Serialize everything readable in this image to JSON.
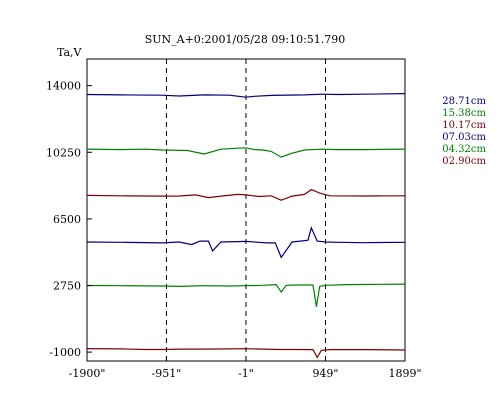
{
  "chart_data": {
    "type": "line",
    "title": "SUN_A+0:2001/05/28 09:10:51.790",
    "ylabel": "Ta,V",
    "xlabel": "",
    "x_ticks": [
      "-1900\"",
      "-951\"",
      "-1\"",
      "949\"",
      "1899\""
    ],
    "x_tick_values": [
      -1900,
      -951,
      -1,
      949,
      1899
    ],
    "y_ticks": [
      "14000",
      "10250",
      "6500",
      "2750",
      "-1000"
    ],
    "y_tick_values": [
      14000,
      10250,
      6500,
      2750,
      -1000
    ],
    "xlim": [
      -1900,
      1899
    ],
    "ylim": [
      -1500,
      15500
    ],
    "dashed_verticals": [
      -951,
      -1,
      949
    ],
    "grid": false,
    "legend_position": "right",
    "series": [
      {
        "name": "28.71cm",
        "color": "#00007f",
        "points": [
          [
            -1900,
            13500
          ],
          [
            -1500,
            13480
          ],
          [
            -1000,
            13460
          ],
          [
            -800,
            13420
          ],
          [
            -500,
            13480
          ],
          [
            -200,
            13460
          ],
          [
            0,
            13350
          ],
          [
            100,
            13400
          ],
          [
            300,
            13450
          ],
          [
            500,
            13470
          ],
          [
            700,
            13480
          ],
          [
            900,
            13520
          ],
          [
            1100,
            13500
          ],
          [
            1400,
            13520
          ],
          [
            1899,
            13550
          ]
        ]
      },
      {
        "name": "15.38cm",
        "color": "#007f00",
        "points": [
          [
            -1900,
            10430
          ],
          [
            -1500,
            10400
          ],
          [
            -1200,
            10420
          ],
          [
            -1000,
            10380
          ],
          [
            -700,
            10350
          ],
          [
            -500,
            10150
          ],
          [
            -300,
            10420
          ],
          [
            -100,
            10480
          ],
          [
            0,
            10500
          ],
          [
            100,
            10400
          ],
          [
            200,
            10380
          ],
          [
            300,
            10300
          ],
          [
            420,
            9980
          ],
          [
            550,
            10200
          ],
          [
            700,
            10380
          ],
          [
            900,
            10420
          ],
          [
            1100,
            10400
          ],
          [
            1400,
            10400
          ],
          [
            1899,
            10430
          ]
        ]
      },
      {
        "name": "10.17cm",
        "color": "#7f0000",
        "points": [
          [
            -1900,
            7820
          ],
          [
            -1500,
            7800
          ],
          [
            -1000,
            7780
          ],
          [
            -800,
            7790
          ],
          [
            -600,
            7850
          ],
          [
            -450,
            7700
          ],
          [
            -300,
            7780
          ],
          [
            -100,
            7880
          ],
          [
            0,
            7850
          ],
          [
            150,
            7760
          ],
          [
            300,
            7800
          ],
          [
            420,
            7550
          ],
          [
            550,
            7780
          ],
          [
            700,
            7880
          ],
          [
            780,
            8150
          ],
          [
            880,
            7950
          ],
          [
            1000,
            7800
          ],
          [
            1400,
            7790
          ],
          [
            1899,
            7800
          ]
        ]
      },
      {
        "name": "07.03cm",
        "color": "#00007f",
        "points": [
          [
            -1900,
            5200
          ],
          [
            -1500,
            5180
          ],
          [
            -1000,
            5150
          ],
          [
            -800,
            5200
          ],
          [
            -650,
            5050
          ],
          [
            -550,
            5250
          ],
          [
            -450,
            5250
          ],
          [
            -400,
            4700
          ],
          [
            -300,
            5200
          ],
          [
            -100,
            5220
          ],
          [
            0,
            5230
          ],
          [
            150,
            5180
          ],
          [
            250,
            5150
          ],
          [
            350,
            5150
          ],
          [
            420,
            4330
          ],
          [
            550,
            5200
          ],
          [
            650,
            5250
          ],
          [
            740,
            5300
          ],
          [
            780,
            6000
          ],
          [
            850,
            5250
          ],
          [
            950,
            5200
          ],
          [
            1100,
            5180
          ],
          [
            1400,
            5160
          ],
          [
            1899,
            5180
          ]
        ]
      },
      {
        "name": "04.32cm",
        "color": "#007f00",
        "points": [
          [
            -1900,
            2750
          ],
          [
            -1500,
            2740
          ],
          [
            -1000,
            2720
          ],
          [
            -800,
            2700
          ],
          [
            -500,
            2740
          ],
          [
            -200,
            2720
          ],
          [
            0,
            2740
          ],
          [
            200,
            2760
          ],
          [
            360,
            2800
          ],
          [
            420,
            2380
          ],
          [
            480,
            2760
          ],
          [
            600,
            2780
          ],
          [
            800,
            2780
          ],
          [
            840,
            1550
          ],
          [
            880,
            2700
          ],
          [
            950,
            2760
          ],
          [
            1200,
            2800
          ],
          [
            1899,
            2830
          ]
        ]
      },
      {
        "name": "02.90cm",
        "color": "#7f0000",
        "points": [
          [
            -1900,
            -800
          ],
          [
            -1500,
            -820
          ],
          [
            -1200,
            -850
          ],
          [
            -1000,
            -850
          ],
          [
            -800,
            -830
          ],
          [
            -500,
            -830
          ],
          [
            -200,
            -820
          ],
          [
            0,
            -810
          ],
          [
            200,
            -830
          ],
          [
            400,
            -850
          ],
          [
            600,
            -850
          ],
          [
            800,
            -860
          ],
          [
            850,
            -1300
          ],
          [
            900,
            -900
          ],
          [
            1000,
            -860
          ],
          [
            1400,
            -860
          ],
          [
            1899,
            -880
          ]
        ]
      }
    ]
  }
}
